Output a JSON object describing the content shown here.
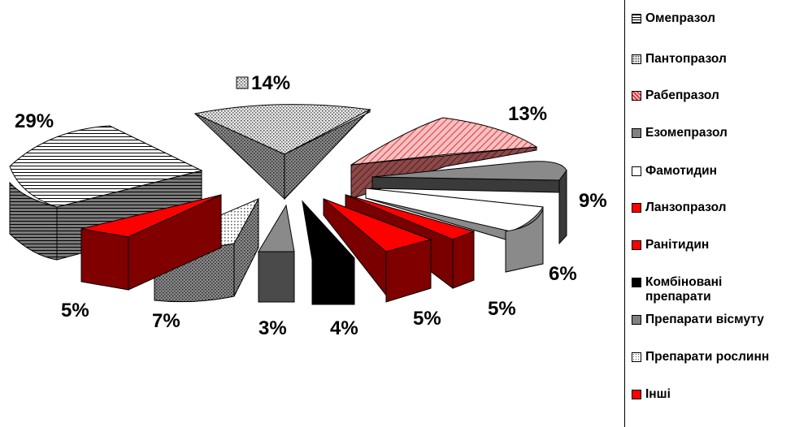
{
  "chart_data": {
    "type": "pie",
    "slices": [
      {
        "label": "Омепразол",
        "value": 29,
        "value_label": "29%",
        "pattern": "horizontal-lines",
        "color": "#ffffff"
      },
      {
        "label": "Пантопразол",
        "value": 14,
        "value_label": "14%",
        "pattern": "dots",
        "color": "#d9d9d9"
      },
      {
        "label": "Рабепразол",
        "value": 13,
        "value_label": "13%",
        "pattern": "diagonal-hatch",
        "color": "#e8595f"
      },
      {
        "label": "Езомепразол",
        "value": 9,
        "value_label": "9%",
        "pattern": "solid",
        "color": "#808080"
      },
      {
        "label": "Фамотидин",
        "value": 6,
        "value_label": "6%",
        "pattern": "solid",
        "color": "#ffffff"
      },
      {
        "label": "Лaнзопразол",
        "value": 5,
        "value_label": "5%",
        "pattern": "solid",
        "color": "#ff0000"
      },
      {
        "label": "Ранітидин",
        "value": 5,
        "value_label": "5%",
        "pattern": "solid",
        "color": "#ff0000"
      },
      {
        "label": "Комбіновані препарати",
        "value": 4,
        "value_label": "4%",
        "pattern": "solid",
        "color": "#000000"
      },
      {
        "label": "Препарати вісмуту",
        "value": 3,
        "value_label": "3%",
        "pattern": "solid",
        "color": "#808080"
      },
      {
        "label": "Препарати рослинн",
        "value": 7,
        "value_label": "7%",
        "pattern": "dots",
        "color": "#ffffff"
      },
      {
        "label": "Інші",
        "value": 5,
        "value_label": "5%",
        "pattern": "solid",
        "color": "#ff0000"
      }
    ],
    "style": "3d-exploded",
    "legend_position": "right"
  }
}
